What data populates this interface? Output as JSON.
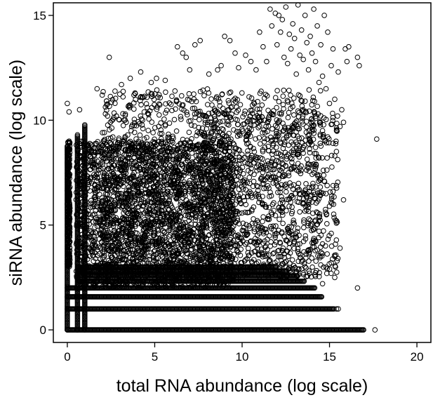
{
  "chart_data": {
    "type": "scatter",
    "title": "",
    "xlabel": "total RNA abundance (log scale)",
    "ylabel": "siRNA abundance (log scale)",
    "xlim": [
      -0.8,
      20.8
    ],
    "ylim": [
      -0.6,
      15.6
    ],
    "x_ticks": [
      0,
      5,
      10,
      15,
      20
    ],
    "y_ticks": [
      0,
      5,
      10,
      15
    ],
    "marker": "open-circle",
    "grid": false,
    "legend": "none",
    "colors": {
      "points": "#000000",
      "axes": "#000000",
      "background": "#ffffff"
    },
    "dense_regions": [
      {
        "xmin": 0.5,
        "xmax": 9.5,
        "ymin": 2.0,
        "ymax": 9.0,
        "count": 2600
      },
      {
        "xmin": 2.0,
        "xmax": 14.5,
        "ymin": 2.5,
        "ymax": 11.5,
        "count": 1400
      },
      {
        "xmin": 7.5,
        "xmax": 15.5,
        "ymin": 2.5,
        "ymax": 10.5,
        "count": 700
      },
      {
        "xmin": 0.0,
        "xmax": 0.15,
        "ymin": 3.0,
        "ymax": 9.0,
        "count": 250
      }
    ],
    "horizontal_bands": [
      {
        "y": 0.0,
        "xmin": 0.0,
        "xmax": 17.0
      },
      {
        "y": 1.0,
        "xmin": 0.0,
        "xmax": 15.3
      },
      {
        "y": 1.58,
        "xmin": 0.0,
        "xmax": 14.6
      },
      {
        "y": 2.0,
        "xmin": 0.0,
        "xmax": 14.2
      },
      {
        "y": 2.32,
        "xmin": 0.6,
        "xmax": 13.6
      },
      {
        "y": 2.58,
        "xmin": 0.6,
        "xmax": 13.2
      },
      {
        "y": 2.81,
        "xmin": 0.6,
        "xmax": 12.6
      },
      {
        "y": 3.0,
        "xmin": 0.6,
        "xmax": 12.0
      }
    ],
    "vertical_bands": [
      {
        "x": 0.0,
        "ymin": 0.0,
        "ymax": 8.8
      },
      {
        "x": 0.58,
        "ymin": 0.0,
        "ymax": 9.3
      },
      {
        "x": 1.0,
        "ymin": 0.0,
        "ymax": 9.8
      }
    ],
    "sparse_points": [
      [
        0.0,
        10.8
      ],
      [
        0.1,
        10.4
      ],
      [
        0.7,
        10.5
      ],
      [
        1.7,
        11.5
      ],
      [
        2.0,
        11.2
      ],
      [
        2.4,
        13.0
      ],
      [
        3.1,
        11.7
      ],
      [
        3.6,
        12.0
      ],
      [
        4.2,
        12.3
      ],
      [
        4.8,
        11.8
      ],
      [
        5.1,
        12.0
      ],
      [
        5.6,
        11.9
      ],
      [
        6.3,
        13.5
      ],
      [
        6.6,
        13.2
      ],
      [
        6.8,
        13.0
      ],
      [
        7.0,
        12.4
      ],
      [
        7.3,
        13.6
      ],
      [
        7.6,
        13.8
      ],
      [
        8.1,
        12.2
      ],
      [
        8.6,
        12.4
      ],
      [
        8.8,
        12.6
      ],
      [
        9.0,
        14.0
      ],
      [
        9.3,
        13.8
      ],
      [
        9.6,
        13.2
      ],
      [
        9.8,
        12.5
      ],
      [
        10.2,
        13.1
      ],
      [
        10.5,
        12.8
      ],
      [
        10.8,
        12.4
      ],
      [
        11.0,
        14.2
      ],
      [
        11.2,
        13.5
      ],
      [
        11.4,
        12.8
      ],
      [
        11.6,
        15.3
      ],
      [
        11.7,
        14.5
      ],
      [
        11.9,
        15.1
      ],
      [
        12.0,
        13.6
      ],
      [
        12.1,
        15.0
      ],
      [
        12.2,
        14.2
      ],
      [
        12.3,
        14.8
      ],
      [
        12.4,
        13.0
      ],
      [
        12.5,
        15.4
      ],
      [
        12.6,
        12.7
      ],
      [
        12.7,
        14.1
      ],
      [
        12.8,
        13.4
      ],
      [
        12.9,
        14.6
      ],
      [
        13.0,
        13.9
      ],
      [
        13.1,
        12.2
      ],
      [
        13.2,
        15.5
      ],
      [
        13.3,
        13.1
      ],
      [
        13.4,
        14.3
      ],
      [
        13.5,
        12.9
      ],
      [
        13.6,
        15.0
      ],
      [
        13.7,
        13.7
      ],
      [
        13.8,
        12.4
      ],
      [
        13.9,
        14.0
      ],
      [
        14.0,
        13.2
      ],
      [
        14.1,
        15.3
      ],
      [
        14.2,
        12.8
      ],
      [
        14.3,
        14.5
      ],
      [
        14.4,
        11.8
      ],
      [
        14.5,
        13.6
      ],
      [
        14.6,
        12.1
      ],
      [
        14.7,
        15.0
      ],
      [
        14.8,
        11.5
      ],
      [
        14.9,
        14.2
      ],
      [
        15.0,
        10.8
      ],
      [
        15.1,
        12.6
      ],
      [
        15.2,
        13.4
      ],
      [
        15.3,
        11.0
      ],
      [
        15.5,
        12.3
      ],
      [
        15.7,
        10.5
      ],
      [
        15.9,
        13.4
      ],
      [
        16.0,
        12.8
      ],
      [
        16.1,
        13.5
      ],
      [
        16.6,
        13.0
      ],
      [
        16.7,
        12.6
      ],
      [
        15.1,
        9.8
      ],
      [
        15.4,
        9.5
      ],
      [
        15.2,
        8.9
      ],
      [
        14.9,
        9.2
      ],
      [
        15.6,
        9.7
      ],
      [
        15.8,
        6.2
      ],
      [
        15.8,
        9.9
      ],
      [
        16.6,
        2.0
      ],
      [
        17.7,
        9.1
      ],
      [
        17.6,
        0.0
      ],
      [
        15.3,
        3.5
      ],
      [
        15.6,
        3.9
      ],
      [
        15.1,
        4.6
      ],
      [
        15.4,
        5.2
      ],
      [
        15.0,
        5.9
      ],
      [
        15.2,
        6.6
      ],
      [
        14.7,
        7.1
      ],
      [
        15.4,
        1.0
      ],
      [
        15.5,
        1.0
      ],
      [
        14.6,
        2.2
      ],
      [
        15.3,
        2.5
      ],
      [
        14.5,
        3.1
      ],
      [
        15.1,
        3.2
      ],
      [
        14.6,
        4.1
      ],
      [
        14.8,
        6.5
      ],
      [
        14.4,
        8.2
      ],
      [
        14.2,
        8.7
      ]
    ]
  }
}
